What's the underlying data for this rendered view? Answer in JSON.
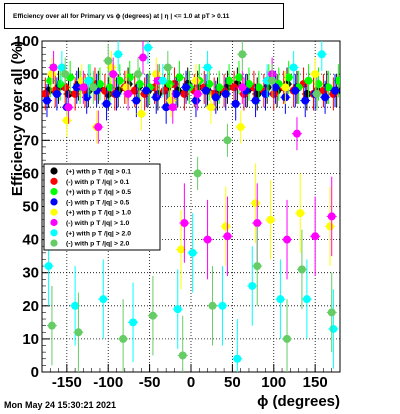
{
  "page": {
    "title": "Efficiency over all for Primary vs ϕ (degrees) at | η | <= 1.0 at pT > 0.11",
    "timestamp": "Mon May 24 15:30:21 2021"
  },
  "chart_data": {
    "type": "scatter",
    "title": "Efficiency over all for Primary vs ϕ (degrees) at | η | <= 1.0 at pT > 0.11",
    "xlabel": "ϕ (degrees)",
    "ylabel": "Efficiency over all (%)",
    "xlim": [
      -180,
      180
    ],
    "ylim": [
      0,
      100
    ],
    "xticks": [
      -150,
      -100,
      -50,
      0,
      50,
      100,
      150
    ],
    "yticks": [
      0,
      10,
      20,
      30,
      40,
      50,
      60,
      70,
      80,
      90,
      100
    ],
    "grid": true,
    "legend_position": "left-middle",
    "series": [
      {
        "name": "(+) with p T /|q| > 0.1",
        "color": "#000000",
        "x": [
          -172,
          -160,
          -148,
          -136,
          -124,
          -112,
          -100,
          -88,
          -76,
          -64,
          -52,
          -40,
          -28,
          -16,
          -4,
          8,
          20,
          32,
          44,
          56,
          68,
          80,
          92,
          104,
          116,
          128,
          140,
          152,
          164,
          176
        ],
        "y": [
          85,
          86,
          84,
          87,
          85,
          86,
          84,
          85,
          87,
          86,
          85,
          84,
          86,
          85,
          87,
          86,
          85,
          84,
          86,
          87,
          85,
          84,
          86,
          85,
          87,
          86,
          84,
          85,
          86,
          85
        ]
      },
      {
        "name": "(-) with p T /|q| > 0.1",
        "color": "#ff0000",
        "x": [
          -176,
          -164,
          -152,
          -140,
          -128,
          -116,
          -104,
          -92,
          -80,
          -68,
          -56,
          -44,
          -32,
          -20,
          -8,
          4,
          16,
          28,
          40,
          52,
          64,
          76,
          88,
          100,
          112,
          124,
          136,
          148,
          160,
          172
        ],
        "y": [
          84,
          85,
          86,
          84,
          85,
          87,
          85,
          84,
          86,
          85,
          84,
          86,
          85,
          87,
          84,
          85,
          86,
          84,
          85,
          86,
          84,
          86,
          85,
          84,
          86,
          85,
          87,
          84,
          85,
          84
        ]
      },
      {
        "name": "(+) with p T /|q| > 0.5",
        "color": "#00ff00",
        "x": [
          -170,
          -158,
          -146,
          -134,
          -122,
          -110,
          -98,
          -86,
          -74,
          -62,
          -50,
          -38,
          -26,
          -14,
          -2,
          10,
          22,
          34,
          46,
          58,
          70,
          82,
          94,
          106,
          118,
          130,
          142,
          154,
          166,
          178
        ],
        "y": [
          88,
          87,
          89,
          86,
          88,
          87,
          86,
          88,
          89,
          87,
          86,
          88,
          87,
          89,
          86,
          88,
          87,
          86,
          88,
          89,
          87,
          86,
          88,
          87,
          89,
          86,
          88,
          87,
          86,
          88
        ]
      },
      {
        "name": "(-) with p T /|q| > 0.5",
        "color": "#0000ff",
        "x": [
          -174,
          -162,
          -150,
          -138,
          -126,
          -114,
          -102,
          -90,
          -78,
          -66,
          -54,
          -42,
          -30,
          -18,
          -6,
          6,
          18,
          30,
          42,
          54,
          66,
          78,
          90,
          102,
          114,
          126,
          138,
          150,
          162,
          174
        ],
        "y": [
          82,
          84,
          80,
          86,
          83,
          85,
          81,
          84,
          86,
          82,
          85,
          83,
          80,
          84,
          86,
          82,
          85,
          83,
          84,
          81,
          85,
          82,
          84,
          86,
          83,
          85,
          82,
          84,
          83,
          85
        ]
      },
      {
        "name": "(+) with p T /|q| > 1.0",
        "color": "#ffff00",
        "x": [
          -168,
          -150,
          -132,
          -114,
          -96,
          -78,
          -60,
          -42,
          -24,
          -12,
          6,
          24,
          42,
          60,
          78,
          96,
          114,
          132,
          150,
          168
        ],
        "y": [
          90,
          76,
          88,
          74,
          92,
          86,
          78,
          90,
          82,
          37,
          88,
          80,
          44,
          74,
          51,
          46,
          86,
          48,
          90,
          44
        ]
      },
      {
        "name": "(-) with p T /|q| > 1.0",
        "color": "#ff00ff",
        "x": [
          -166,
          -148,
          -130,
          -112,
          -94,
          -76,
          -58,
          -40,
          -22,
          -8,
          8,
          20,
          44,
          62,
          80,
          98,
          116,
          128,
          150,
          170
        ],
        "y": [
          92,
          80,
          86,
          74,
          90,
          84,
          95,
          88,
          80,
          45,
          84,
          40,
          41,
          86,
          45,
          90,
          40,
          72,
          41,
          47
        ]
      },
      {
        "name": "(+) with p T /|q| > 2.0",
        "color": "#00ffff",
        "x": [
          -172,
          -156,
          -140,
          -124,
          -106,
          -88,
          -70,
          -52,
          -34,
          -16,
          2,
          20,
          38,
          56,
          74,
          92,
          108,
          124,
          140,
          158,
          172
        ],
        "y": [
          32,
          92,
          20,
          88,
          22,
          96,
          15,
          98,
          88,
          19,
          36,
          92,
          20,
          4,
          26,
          88,
          22,
          92,
          22,
          96,
          13
        ]
      },
      {
        "name": "(-) with p T /|q| > 2.0",
        "color": "#66cc66",
        "x": [
          -168,
          -152,
          -136,
          -118,
          -100,
          -82,
          -64,
          -46,
          -28,
          -10,
          8,
          26,
          44,
          62,
          80,
          98,
          116,
          134,
          152,
          170
        ],
        "y": [
          14,
          90,
          12,
          86,
          94,
          10,
          90,
          17,
          92,
          5,
          60,
          20,
          70,
          96,
          32,
          88,
          10,
          31,
          84,
          18
        ]
      }
    ]
  }
}
